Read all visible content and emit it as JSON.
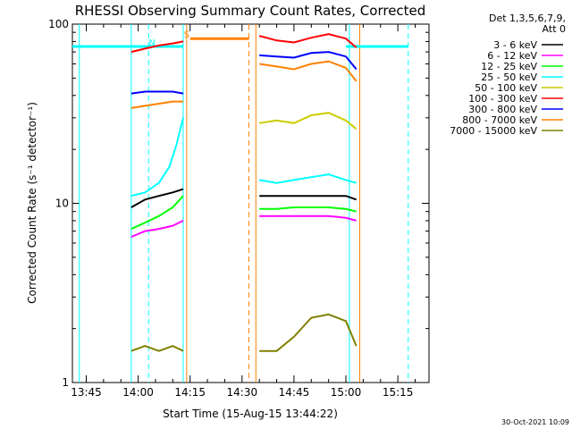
{
  "chart_data": {
    "type": "line",
    "title": "RHESSI Observing Summary Count Rates, Corrected",
    "xlabel": "Start Time (15-Aug-15 13:44:22)",
    "ylabel": "Corrected Count Rate (s⁻¹ detector⁻¹)",
    "y_scale": "log",
    "xlim": [
      "13:41",
      "15:24"
    ],
    "ylim": [
      1,
      100
    ],
    "x_ticks": [
      "13:45",
      "14:00",
      "14:15",
      "14:30",
      "14:45",
      "15:00",
      "15:15"
    ],
    "y_ticks": [
      "1",
      "10",
      "100"
    ],
    "legend": {
      "placement": "top-right",
      "header": [
        "Det 1,3,5,6,7,9,",
        "Att 0"
      ]
    },
    "series": [
      {
        "name": "3 - 6 keV",
        "color": "#000000",
        "segments": [
          {
            "x": [
              "13:58",
              "14:02",
              "14:06",
              "14:10",
              "14:13"
            ],
            "y": [
              9.5,
              10.5,
              11,
              11.5,
              12
            ]
          },
          {
            "x": [
              "14:35",
              "14:40",
              "14:45",
              "14:50",
              "14:55",
              "15:00",
              "15:03"
            ],
            "y": [
              11,
              11,
              11,
              11,
              11,
              11,
              10.5
            ]
          }
        ]
      },
      {
        "name": "6 - 12 keV",
        "color": "#ff00ff",
        "segments": [
          {
            "x": [
              "13:58",
              "14:02",
              "14:06",
              "14:10",
              "14:13"
            ],
            "y": [
              6.5,
              7,
              7.2,
              7.5,
              8
            ]
          },
          {
            "x": [
              "14:35",
              "14:40",
              "14:45",
              "14:50",
              "14:55",
              "15:00",
              "15:03"
            ],
            "y": [
              8.5,
              8.5,
              8.5,
              8.5,
              8.5,
              8.3,
              8
            ]
          }
        ]
      },
      {
        "name": "12 - 25 keV",
        "color": "#00ff00",
        "segments": [
          {
            "x": [
              "13:58",
              "14:02",
              "14:06",
              "14:10",
              "14:13"
            ],
            "y": [
              7.2,
              7.8,
              8.5,
              9.5,
              11
            ]
          },
          {
            "x": [
              "14:35",
              "14:40",
              "14:45",
              "14:50",
              "14:55",
              "15:00",
              "15:03"
            ],
            "y": [
              9.3,
              9.3,
              9.5,
              9.5,
              9.5,
              9.3,
              9
            ]
          }
        ]
      },
      {
        "name": "25 - 50 keV",
        "color": "#00ffff",
        "segments": [
          {
            "x": [
              "13:58",
              "14:02",
              "14:06",
              "14:09",
              "14:11",
              "14:13"
            ],
            "y": [
              11,
              11.5,
              13,
              16,
              21,
              30
            ]
          },
          {
            "x": [
              "14:35",
              "14:40",
              "14:45",
              "14:50",
              "14:55",
              "15:00",
              "15:03"
            ],
            "y": [
              13.5,
              13,
              13.5,
              14,
              14.5,
              13.5,
              13
            ]
          }
        ]
      },
      {
        "name": "50 - 100 keV",
        "color": "#cccc00",
        "segments": [
          {
            "x": [
              "14:35",
              "14:40",
              "14:45",
              "14:50",
              "14:55",
              "15:00",
              "15:03"
            ],
            "y": [
              28,
              29,
              28,
              31,
              32,
              29,
              26
            ]
          }
        ]
      },
      {
        "name": "100 - 300 keV",
        "color": "#ff0000",
        "segments": [
          {
            "x": [
              "13:58",
              "14:02",
              "14:06",
              "14:10",
              "14:13"
            ],
            "y": [
              70,
              73,
              76,
              78,
              80
            ]
          },
          {
            "x": [
              "14:35",
              "14:40",
              "14:45",
              "14:50",
              "14:55",
              "15:00",
              "15:03"
            ],
            "y": [
              86,
              81,
              79,
              84,
              88,
              83,
              74
            ]
          }
        ]
      },
      {
        "name": "300 - 800 keV",
        "color": "#0000ff",
        "segments": [
          {
            "x": [
              "13:58",
              "14:02",
              "14:06",
              "14:10",
              "14:13"
            ],
            "y": [
              41,
              42,
              42,
              42,
              41
            ]
          },
          {
            "x": [
              "14:35",
              "14:40",
              "14:45",
              "14:50",
              "14:55",
              "15:00",
              "15:03"
            ],
            "y": [
              67,
              66,
              65,
              69,
              70,
              66,
              56
            ]
          }
        ]
      },
      {
        "name": "800 - 7000 keV",
        "color": "#ff8000",
        "segments": [
          {
            "x": [
              "13:58",
              "14:02",
              "14:06",
              "14:10",
              "14:13"
            ],
            "y": [
              34,
              35,
              36,
              37,
              37
            ]
          },
          {
            "x": [
              "14:35",
              "14:40",
              "14:45",
              "14:50",
              "14:55",
              "15:00",
              "15:03"
            ],
            "y": [
              60,
              58,
              56,
              60,
              62,
              57,
              48
            ]
          }
        ]
      },
      {
        "name": "7000 - 15000 keV",
        "color": "#808000",
        "segments": [
          {
            "x": [
              "13:58",
              "14:02",
              "14:06",
              "14:10",
              "14:13"
            ],
            "y": [
              1.5,
              1.6,
              1.5,
              1.6,
              1.5
            ]
          },
          {
            "x": [
              "14:35",
              "14:40",
              "14:45",
              "14:50",
              "14:55",
              "15:00",
              "15:03"
            ],
            "y": [
              1.5,
              1.5,
              1.8,
              2.3,
              2.4,
              2.2,
              1.6
            ]
          }
        ]
      }
    ],
    "flags": [
      {
        "label": "N",
        "color": "#00ffff",
        "x_start": "13:41",
        "x_end": "14:13",
        "y": 75
      },
      {
        "label": "S",
        "color": "#ff8000",
        "x_start": "14:15",
        "x_end": "14:32",
        "y": 83
      },
      {
        "label": "",
        "color": "#00ffff",
        "x_start": "15:00",
        "x_end": "15:18",
        "y": 75
      }
    ],
    "vlines": [
      {
        "x": "13:43",
        "color": "#00ffff",
        "dashed": false
      },
      {
        "x": "13:58",
        "color": "#00ffff",
        "dashed": false
      },
      {
        "x": "14:03",
        "color": "#00ffff",
        "dashed": true
      },
      {
        "x": "14:13",
        "color": "#00ffff",
        "dashed": false
      },
      {
        "x": "14:14",
        "color": "#ff8000",
        "dashed": false
      },
      {
        "x": "14:32",
        "color": "#ff8000",
        "dashed": true
      },
      {
        "x": "14:34",
        "color": "#ff8000",
        "dashed": false
      },
      {
        "x": "15:01",
        "color": "#00ffff",
        "dashed": false
      },
      {
        "x": "15:04",
        "color": "#ff8000",
        "dashed": false
      },
      {
        "x": "15:18",
        "color": "#00ffff",
        "dashed": true
      }
    ]
  },
  "footer": {
    "date": "30-Oct-2021 10:09"
  }
}
